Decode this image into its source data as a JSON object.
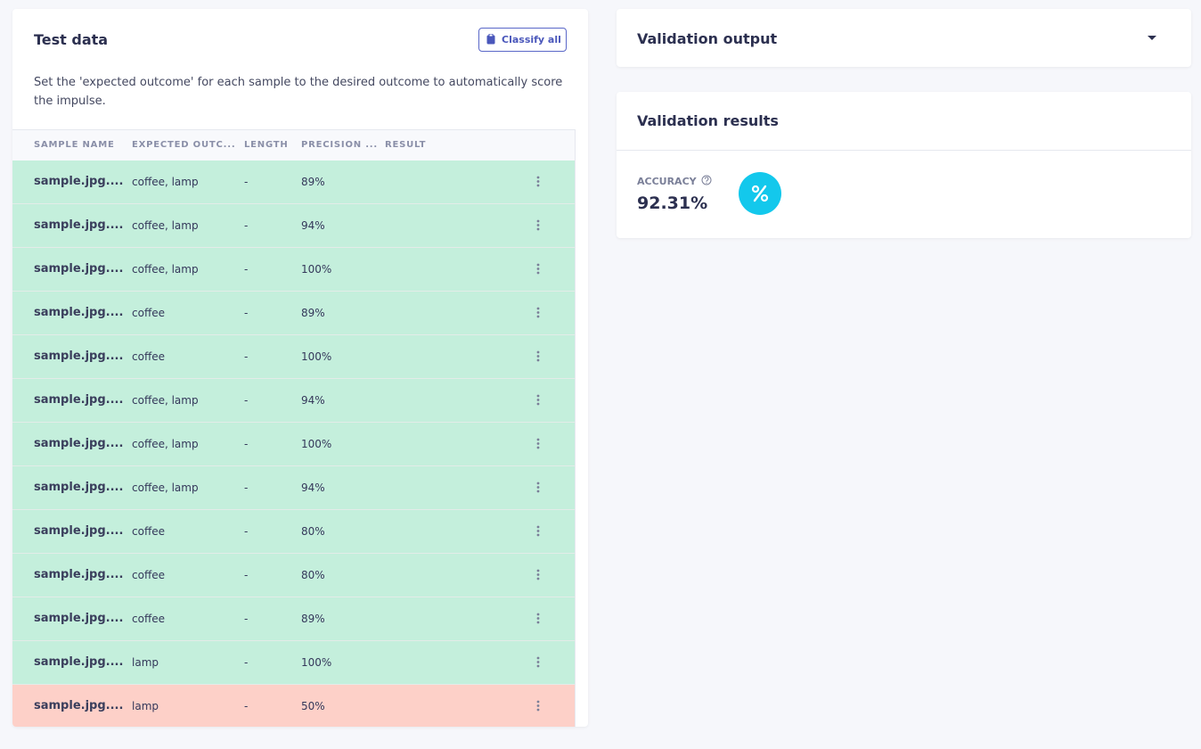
{
  "test_data": {
    "title": "Test data",
    "button": "Classify all",
    "description": "Set the 'expected outcome' for each sample to the desired outcome to automatically score the impulse.",
    "columns": [
      "SAMPLE NAME",
      "EXPECTED OUTC...",
      "LENGTH",
      "PRECISION ...",
      "RESULT"
    ],
    "rows": [
      {
        "name": "sample.jpg....",
        "expected": "coffee, lamp",
        "length": "-",
        "precision": "89%",
        "color": "#c4efdc"
      },
      {
        "name": "sample.jpg....",
        "expected": "coffee, lamp",
        "length": "-",
        "precision": "94%",
        "color": "#c4efdc"
      },
      {
        "name": "sample.jpg....",
        "expected": "coffee, lamp",
        "length": "-",
        "precision": "100%",
        "color": "#c4efdc"
      },
      {
        "name": "sample.jpg....",
        "expected": "coffee",
        "length": "-",
        "precision": "89%",
        "color": "#c4efdc"
      },
      {
        "name": "sample.jpg....",
        "expected": "coffee",
        "length": "-",
        "precision": "100%",
        "color": "#c4efdc"
      },
      {
        "name": "sample.jpg....",
        "expected": "coffee, lamp",
        "length": "-",
        "precision": "94%",
        "color": "#c4efdc"
      },
      {
        "name": "sample.jpg....",
        "expected": "coffee, lamp",
        "length": "-",
        "precision": "100%",
        "color": "#c4efdc"
      },
      {
        "name": "sample.jpg....",
        "expected": "coffee, lamp",
        "length": "-",
        "precision": "94%",
        "color": "#c4efdc"
      },
      {
        "name": "sample.jpg....",
        "expected": "coffee",
        "length": "-",
        "precision": "80%",
        "color": "#c4efdc"
      },
      {
        "name": "sample.jpg....",
        "expected": "coffee",
        "length": "-",
        "precision": "80%",
        "color": "#c4efdc"
      },
      {
        "name": "sample.jpg....",
        "expected": "coffee",
        "length": "-",
        "precision": "89%",
        "color": "#c4efdc"
      },
      {
        "name": "sample.jpg....",
        "expected": "lamp",
        "length": "-",
        "precision": "100%",
        "color": "#c4efdc"
      },
      {
        "name": "sample.jpg....",
        "expected": "lamp",
        "length": "-",
        "precision": "50%",
        "color": "#fdd0c8"
      }
    ]
  },
  "validation_output": {
    "title": "Validation output"
  },
  "validation_results": {
    "title": "Validation results",
    "metric_label": "ACCURACY",
    "metric_value": "92.31%"
  }
}
